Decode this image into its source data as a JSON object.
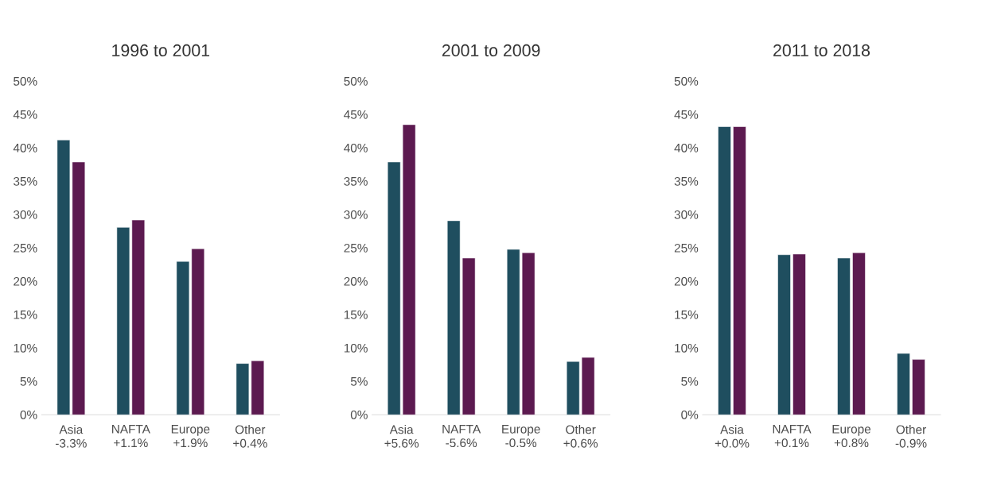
{
  "chart_data": [
    {
      "type": "bar",
      "title": "1996 to 2001",
      "categories": [
        "Asia -3.3%",
        "NAFTA +1.1%",
        "Europe +1.9%",
        "Other +0.4%"
      ],
      "series": [
        {
          "color": "#1f4e5f",
          "values": [
            41.2,
            28.1,
            23.0,
            7.7
          ]
        },
        {
          "color": "#5c1a50",
          "values": [
            37.9,
            29.2,
            24.9,
            8.1
          ]
        }
      ],
      "ylim": [
        0,
        50
      ],
      "yticks": [
        {
          "value": 0,
          "label": "0%"
        },
        {
          "value": 5,
          "label": "5%"
        },
        {
          "value": 10,
          "label": "10%"
        },
        {
          "value": 15,
          "label": "15%"
        },
        {
          "value": 20,
          "label": "20%"
        },
        {
          "value": 25,
          "label": "25%"
        },
        {
          "value": 30,
          "label": "30%"
        },
        {
          "value": 35,
          "label": "35%"
        },
        {
          "value": 40,
          "label": "40%"
        },
        {
          "value": 45,
          "label": "45%"
        },
        {
          "value": 50,
          "label": "50%"
        }
      ]
    },
    {
      "type": "bar",
      "title": "2001 to 2009",
      "categories": [
        "Asia +5.6%",
        "NAFTA -5.6%",
        "Europe -0.5%",
        "Other +0.6%"
      ],
      "series": [
        {
          "color": "#1f4e5f",
          "values": [
            37.9,
            29.1,
            24.8,
            8.0
          ]
        },
        {
          "color": "#5c1a50",
          "values": [
            43.5,
            23.5,
            24.3,
            8.6
          ]
        }
      ],
      "ylim": [
        0,
        50
      ],
      "yticks": [
        {
          "value": 0,
          "label": "0%"
        },
        {
          "value": 5,
          "label": "5%"
        },
        {
          "value": 10,
          "label": "10%"
        },
        {
          "value": 15,
          "label": "15%"
        },
        {
          "value": 20,
          "label": "20%"
        },
        {
          "value": 25,
          "label": "25%"
        },
        {
          "value": 30,
          "label": "30%"
        },
        {
          "value": 35,
          "label": "35%"
        },
        {
          "value": 40,
          "label": "40%"
        },
        {
          "value": 45,
          "label": "45%"
        },
        {
          "value": 50,
          "label": "50%"
        }
      ]
    },
    {
      "type": "bar",
      "title": "2011 to 2018",
      "categories": [
        "Asia +0.0%",
        "NAFTA +0.1%",
        "Europe +0.8%",
        "Other -0.9%"
      ],
      "series": [
        {
          "color": "#1f4e5f",
          "values": [
            43.2,
            24.0,
            23.5,
            9.2
          ]
        },
        {
          "color": "#5c1a50",
          "values": [
            43.2,
            24.1,
            24.3,
            8.3
          ]
        }
      ],
      "ylim": [
        0,
        50
      ],
      "yticks": [
        {
          "value": 0,
          "label": "0%"
        },
        {
          "value": 5,
          "label": "5%"
        },
        {
          "value": 10,
          "label": "10%"
        },
        {
          "value": 15,
          "label": "15%"
        },
        {
          "value": 20,
          "label": "20%"
        },
        {
          "value": 25,
          "label": "25%"
        },
        {
          "value": 30,
          "label": "30%"
        },
        {
          "value": 35,
          "label": "35%"
        },
        {
          "value": 40,
          "label": "40%"
        },
        {
          "value": 45,
          "label": "45%"
        },
        {
          "value": 50,
          "label": "50%"
        }
      ]
    }
  ]
}
